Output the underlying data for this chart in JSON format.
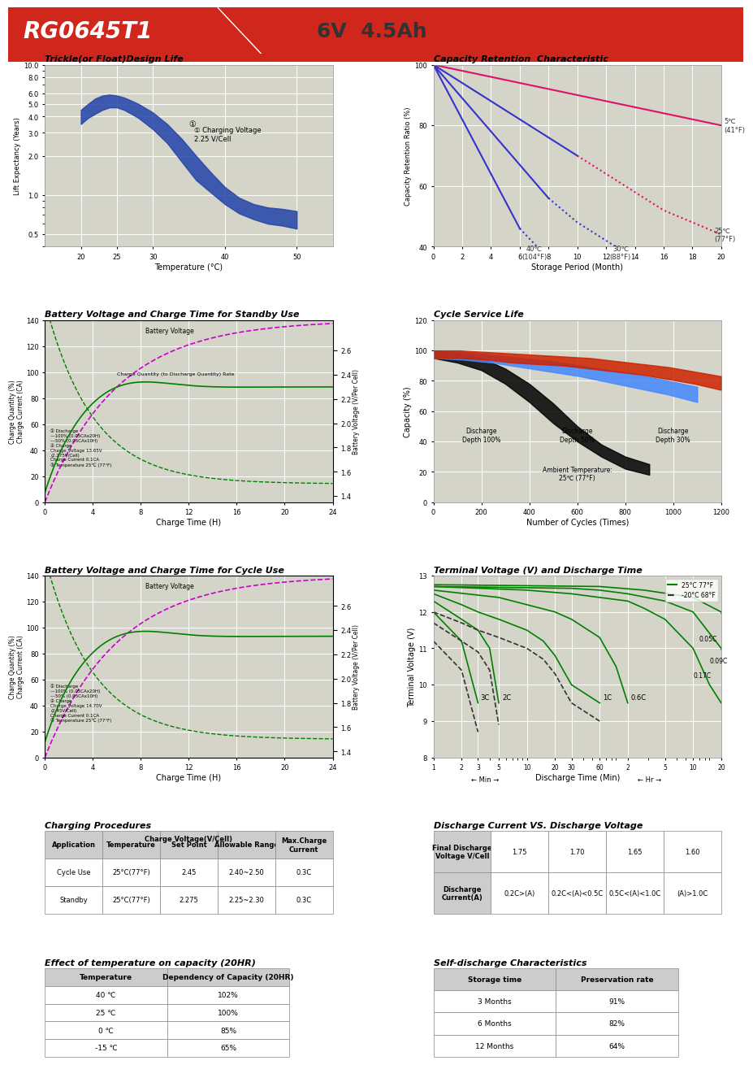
{
  "title_model": "RG0645T1",
  "title_spec": "6V  4.5Ah",
  "header_bg": "#d0271d",
  "header_text_color": "white",
  "section_bg": "#e8e8e8",
  "plot_bg": "#d4d4c8",
  "grid_color": "white",
  "sections": {
    "trickle": {
      "title": "Trickle(or Float)Design Life",
      "xlabel": "Temperature (°C)",
      "ylabel": "Lift Expectancy (Years)",
      "xlim": [
        15,
        55
      ],
      "ylim": [
        0.5,
        10
      ],
      "xticks": [
        20,
        25,
        30,
        40,
        50
      ],
      "yticks": [
        0.5,
        1,
        2,
        3,
        4,
        5,
        6,
        8,
        10
      ],
      "annotation": "① Charging Voltage\n2.25 V/Cell"
    },
    "capacity_retention": {
      "title": "Capacity Retention  Characteristic",
      "xlabel": "Storage Period (Month)",
      "ylabel": "Capacity Retention Ratio (%)",
      "xlim": [
        0,
        20
      ],
      "ylim": [
        40,
        100
      ],
      "xticks": [
        0,
        2,
        4,
        6,
        8,
        10,
        12,
        14,
        16,
        18,
        20
      ],
      "yticks": [
        40,
        60,
        80,
        100
      ]
    },
    "standby_charge": {
      "title": "Battery Voltage and Charge Time for Standby Use",
      "xlabel": "Charge Time (H)",
      "ylabel_left1": "Charge Quantity (%)",
      "ylabel_left2": "Charge Current (CA)",
      "ylabel_right": "Battery Voltage (V/Per Cell)",
      "xlim": [
        0,
        24
      ],
      "ylim_left": [
        0,
        140
      ],
      "ylim_right": [
        1.4,
        2.8
      ]
    },
    "cycle_service": {
      "title": "Cycle Service Life",
      "xlabel": "Number of Cycles (Times)",
      "ylabel": "Capacity (%)",
      "xlim": [
        0,
        1200
      ],
      "ylim": [
        0,
        120
      ],
      "xticks": [
        0,
        200,
        400,
        600,
        800,
        1000,
        1200
      ],
      "yticks": [
        0,
        20,
        40,
        60,
        80,
        100,
        120
      ]
    },
    "cycle_charge": {
      "title": "Battery Voltage and Charge Time for Cycle Use",
      "xlabel": "Charge Time (H)",
      "ylabel_left1": "Charge Quantity (%)",
      "ylabel_left2": "Charge Current (CA)",
      "ylabel_right": "Battery Voltage (V/Per Cell)",
      "xlim": [
        0,
        24
      ],
      "ylim_left": [
        0,
        140
      ],
      "ylim_right": [
        1.4,
        2.8
      ]
    },
    "terminal_voltage": {
      "title": "Terminal Voltage (V) and Discharge Time",
      "xlabel": "Discharge Time (Min)",
      "ylabel": "Terminal Voltage (V)",
      "xlim": [
        1,
        30
      ],
      "ylim": [
        8,
        13
      ]
    }
  },
  "charging_procedures": {
    "title": "Charging Procedures",
    "rows": [
      [
        "Cycle Use",
        "25°C(77°F)",
        "2.45",
        "2.40~2.50",
        "0.3C"
      ],
      [
        "Standby",
        "25°C(77°F)",
        "2.275",
        "2.25~2.30",
        "0.3C"
      ]
    ]
  },
  "discharge_current_table": {
    "title": "Discharge Current VS. Discharge Voltage",
    "final_voltages": [
      1.75,
      1.7,
      1.65,
      1.6
    ],
    "discharge_currents": [
      "0.2C>(A)",
      "0.2C<(A)<0.5C",
      "0.5C<(A)<1.0C",
      "(A)>1.0C"
    ]
  },
  "temp_capacity": {
    "title": "Effect of temperature on capacity (20HR)",
    "rows": [
      [
        "40 ℃",
        "102%"
      ],
      [
        "25 ℃",
        "100%"
      ],
      [
        "0 ℃",
        "85%"
      ],
      [
        "-15 ℃",
        "65%"
      ]
    ]
  },
  "self_discharge": {
    "title": "Self-discharge Characteristics",
    "rows": [
      [
        "3 Months",
        "91%"
      ],
      [
        "6 Months",
        "82%"
      ],
      [
        "12 Months",
        "64%"
      ]
    ]
  }
}
